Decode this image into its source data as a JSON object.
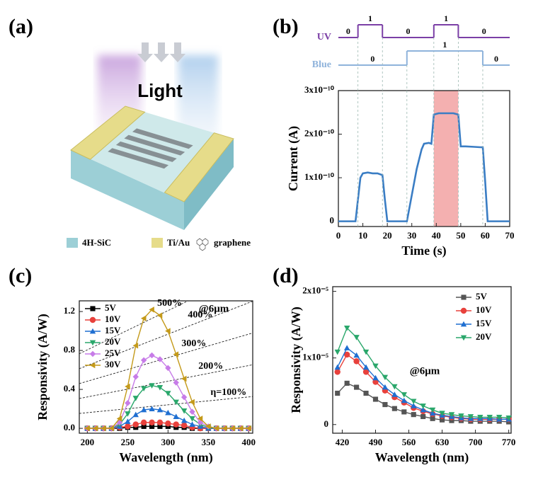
{
  "panels": [
    "(a)",
    "(b)",
    "(c)",
    "(d)"
  ],
  "diagram": {
    "title": "Light",
    "legend": [
      "4H-SiC",
      "Ti/Au",
      "graphene"
    ]
  },
  "chart_data": [
    {
      "type": "line",
      "xlabel": "Time (s)",
      "ylabel": "Current (A)",
      "color": "#3a7dc4",
      "x": [
        0,
        7,
        8,
        9,
        10,
        12,
        14,
        16,
        18,
        19,
        20,
        28,
        30,
        32,
        34,
        35,
        37,
        38,
        39,
        41,
        44,
        47,
        49,
        50,
        52,
        55,
        58,
        59,
        60,
        61,
        70
      ],
      "values": [
        0,
        0,
        5e-11,
        1e-10,
        1.1e-10,
        1.12e-10,
        1.1e-10,
        1.1e-10,
        1.06e-10,
        5e-11,
        0,
        0,
        6e-11,
        1.2e-10,
        1.65e-10,
        1.78e-10,
        1.8e-10,
        1.78e-10,
        2.45e-10,
        2.48e-10,
        2.48e-10,
        2.48e-10,
        2.45e-10,
        1.72e-10,
        1.72e-10,
        1.71e-10,
        1.7e-10,
        1.7e-10,
        9e-11,
        0,
        0
      ],
      "xlim": [
        0,
        70
      ],
      "xticks": [
        0,
        10,
        20,
        30,
        40,
        50,
        60,
        70
      ],
      "ylim": [
        -1.2e-11,
        3e-10
      ],
      "yticks": [
        {
          "value": 0,
          "label": "0"
        },
        {
          "value": 1e-10,
          "label": "1x10⁻¹⁰"
        },
        {
          "value": 2e-10,
          "label": "2x10⁻¹⁰"
        },
        {
          "value": 3e-10,
          "label": "3x10⁻¹⁰"
        }
      ],
      "span": [
        39,
        49
      ],
      "span_color": "#f2a2a2",
      "signals": [
        {
          "name": "UV",
          "color": "#7b3fa6",
          "edges": [
            8,
            18,
            39,
            49
          ],
          "states": [
            0,
            1,
            0,
            1,
            0
          ]
        },
        {
          "name": "Blue",
          "color": "#8fb3db",
          "edges": [
            28,
            59
          ],
          "states": [
            0,
            1,
            0
          ]
        }
      ]
    },
    {
      "type": "line",
      "xlabel": "Wavelength (nm)",
      "ylabel": "Responsivity (A/W)",
      "legend": "upper left",
      "x": [
        200,
        210,
        220,
        230,
        240,
        250,
        260,
        270,
        280,
        290,
        300,
        310,
        320,
        330,
        340,
        350,
        360,
        370,
        380,
        390,
        400
      ],
      "series": [
        {
          "name": "5V",
          "color": "#000000",
          "marker": "square",
          "values": [
            0,
            0,
            0,
            0,
            0,
            0.01,
            0.01,
            0.02,
            0.02,
            0.02,
            0.02,
            0.01,
            0.01,
            0,
            0,
            0,
            0,
            0,
            0,
            0,
            0
          ]
        },
        {
          "name": "10V",
          "color": "#e8413c",
          "marker": "circle",
          "values": [
            0,
            0,
            0,
            0,
            0.01,
            0.02,
            0.04,
            0.06,
            0.06,
            0.06,
            0.05,
            0.04,
            0.03,
            0.01,
            0,
            0,
            0,
            0,
            0,
            0,
            0
          ]
        },
        {
          "name": "15V",
          "color": "#1f6fd1",
          "marker": "triangle-up",
          "values": [
            0,
            0,
            0,
            0,
            0.02,
            0.07,
            0.14,
            0.19,
            0.2,
            0.19,
            0.16,
            0.12,
            0.08,
            0.04,
            0.02,
            0,
            0,
            0,
            0,
            0,
            0
          ]
        },
        {
          "name": "20V",
          "color": "#2aa76b",
          "marker": "triangle-down",
          "values": [
            0,
            0,
            0,
            0,
            0.04,
            0.15,
            0.31,
            0.41,
            0.44,
            0.42,
            0.36,
            0.27,
            0.18,
            0.1,
            0.04,
            0.01,
            0,
            0,
            0,
            0,
            0
          ]
        },
        {
          "name": "25V",
          "color": "#c77ce8",
          "marker": "diamond",
          "values": [
            0,
            0,
            0,
            0,
            0.06,
            0.26,
            0.53,
            0.7,
            0.75,
            0.71,
            0.62,
            0.47,
            0.32,
            0.17,
            0.06,
            0.02,
            0,
            0,
            0,
            0,
            0
          ]
        },
        {
          "name": "30V",
          "color": "#c49a1a",
          "marker": "triangle-left",
          "values": [
            0,
            0,
            0,
            0,
            0.1,
            0.43,
            0.85,
            1.13,
            1.22,
            1.16,
            1,
            0.76,
            0.51,
            0.27,
            0.1,
            0.02,
            0,
            0,
            0,
            0,
            0
          ]
        }
      ],
      "xlim": [
        190,
        405
      ],
      "xticks": [
        200,
        250,
        300,
        350,
        400
      ],
      "ylim": [
        -0.05,
        1.31
      ],
      "yticks": [
        {
          "value": 0,
          "label": "0.0"
        },
        0.4,
        0.8,
        1.2
      ],
      "eqe_lines": [
        {
          "value": 500,
          "label": "500%"
        },
        {
          "value": 400,
          "label": "400%"
        },
        {
          "value": 300,
          "label": "300%"
        },
        {
          "value": 200,
          "label": "200%"
        },
        {
          "value": 100,
          "label": "η=100%"
        }
      ],
      "annotation": "@6μm"
    },
    {
      "type": "line",
      "xlabel": "Wavelength (nm)",
      "ylabel": "Responsivity (A/W)",
      "legend": "upper right",
      "x": [
        410,
        430,
        450,
        470,
        490,
        510,
        530,
        550,
        570,
        590,
        610,
        630,
        650,
        670,
        690,
        710,
        730,
        750,
        770
      ],
      "series": [
        {
          "name": "5V",
          "color": "#555555",
          "marker": "square",
          "values": [
            4.7e-06,
            6.2e-06,
            5.6e-06,
            4.7e-06,
            3.8e-06,
            3e-06,
            2.4e-06,
            1.9e-06,
            1.5e-06,
            1.2e-06,
            9e-07,
            7e-07,
            6e-07,
            6e-07,
            5e-07,
            5e-07,
            5e-07,
            5e-07,
            4e-07
          ]
        },
        {
          "name": "10V",
          "color": "#e8413c",
          "marker": "circle",
          "values": [
            7.9e-06,
            1.05e-05,
            9.5e-06,
            7.9e-06,
            6.4e-06,
            5.1e-06,
            4.1e-06,
            3.3e-06,
            2.5e-06,
            2e-06,
            1.6e-06,
            1.3e-06,
            1.1e-06,
            9e-07,
            8e-07,
            8e-07,
            8e-07,
            8e-07,
            8e-07
          ]
        },
        {
          "name": "15V",
          "color": "#1f6fd1",
          "marker": "triangle-up",
          "values": [
            8.6e-06,
            1.15e-05,
            1.04e-05,
            8.6e-06,
            7e-06,
            5.6e-06,
            4.5e-06,
            3.6e-06,
            2.8e-06,
            2.2e-06,
            1.7e-06,
            1.4e-06,
            1.2e-06,
            1e-06,
            9e-07,
            9e-07,
            9e-07,
            8e-07,
            8e-07
          ]
        },
        {
          "name": "20V",
          "color": "#2aa76b",
          "marker": "triangle-down",
          "values": [
            1.09e-05,
            1.45e-05,
            1.31e-05,
            1.09e-05,
            8.8e-06,
            7.1e-06,
            5.7e-06,
            4.5e-06,
            3.5e-06,
            2.8e-06,
            2.2e-06,
            1.7e-06,
            1.5e-06,
            1.3e-06,
            1.2e-06,
            1.1e-06,
            1.1e-06,
            1.1e-06,
            1e-06
          ]
        }
      ],
      "xlim": [
        400,
        775
      ],
      "xticks": [
        420,
        490,
        560,
        630,
        700,
        770
      ],
      "ylim": [
        -1.3e-06,
        2.07e-05
      ],
      "yticks": [
        {
          "value": 0,
          "label": "0"
        },
        {
          "value": 1e-05,
          "label": "1x10⁻⁵"
        },
        {
          "value": 2e-05,
          "label": "2x10⁻⁵"
        }
      ],
      "annotation": "@6μm"
    }
  ]
}
